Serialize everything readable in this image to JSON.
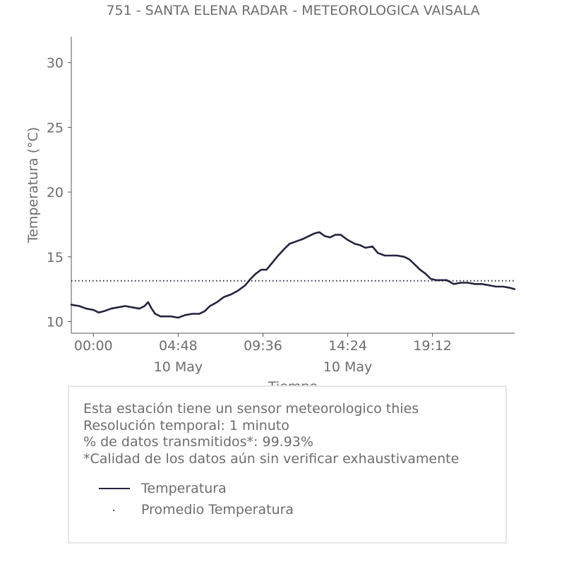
{
  "chart_data": {
    "type": "line",
    "title": "751 - SANTA ELENA RADAR - METEOROLOGICA VAISALA",
    "ylabel": "Temperatura (°C)",
    "xlabel": "Tiempo",
    "ylim": [
      9.1,
      32
    ],
    "xlim": [
      -1.25,
      23.85
    ],
    "yticks": [
      10,
      15,
      20,
      25,
      30
    ],
    "xticks": [
      {
        "hour": 0.0,
        "label": "00:00",
        "sublabel": ""
      },
      {
        "hour": 4.8,
        "label": "04:48",
        "sublabel": "10 May"
      },
      {
        "hour": 9.6,
        "label": "09:36",
        "sublabel": ""
      },
      {
        "hour": 14.4,
        "label": "14:24",
        "sublabel": "10 May"
      },
      {
        "hour": 19.2,
        "label": "19:12",
        "sublabel": ""
      }
    ],
    "series": [
      {
        "name": "Temperatura",
        "style": "solid",
        "color": "#24243f",
        "x": [
          -1.25,
          -0.8,
          -0.4,
          0.0,
          0.3,
          0.6,
          1.0,
          1.4,
          1.8,
          2.2,
          2.6,
          2.9,
          3.1,
          3.3,
          3.5,
          3.8,
          4.1,
          4.4,
          4.8,
          5.2,
          5.6,
          6.0,
          6.3,
          6.6,
          7.0,
          7.4,
          7.8,
          8.2,
          8.6,
          8.9,
          9.2,
          9.5,
          9.8,
          10.1,
          10.4,
          10.8,
          11.1,
          11.5,
          11.9,
          12.2,
          12.5,
          12.8,
          13.1,
          13.4,
          13.7,
          14.0,
          14.4,
          14.8,
          15.1,
          15.4,
          15.8,
          16.1,
          16.5,
          16.9,
          17.2,
          17.6,
          17.9,
          18.2,
          18.5,
          18.8,
          19.1,
          19.4,
          19.7,
          20.0,
          20.4,
          20.8,
          21.2,
          21.6,
          22.0,
          22.4,
          22.8,
          23.2,
          23.6,
          23.85
        ],
        "y": [
          11.3,
          11.2,
          11.0,
          10.9,
          10.7,
          10.8,
          11.0,
          11.1,
          11.2,
          11.1,
          11.0,
          11.2,
          11.5,
          11.0,
          10.6,
          10.4,
          10.4,
          10.4,
          10.3,
          10.5,
          10.6,
          10.6,
          10.8,
          11.2,
          11.5,
          11.9,
          12.1,
          12.4,
          12.8,
          13.3,
          13.7,
          14.0,
          14.0,
          14.5,
          15.0,
          15.6,
          16.0,
          16.2,
          16.4,
          16.6,
          16.8,
          16.9,
          16.6,
          16.5,
          16.7,
          16.7,
          16.3,
          16.0,
          15.9,
          15.7,
          15.8,
          15.3,
          15.1,
          15.1,
          15.1,
          15.0,
          14.8,
          14.4,
          14.0,
          13.7,
          13.3,
          13.2,
          13.2,
          13.2,
          12.9,
          13.0,
          13.0,
          12.9,
          12.9,
          12.8,
          12.7,
          12.7,
          12.6,
          12.5
        ]
      },
      {
        "name": "Promedio Temperatura",
        "style": "dotted",
        "color": "#24243f",
        "x": [
          -1.25,
          23.85
        ],
        "y": [
          13.15,
          13.15
        ]
      }
    ],
    "legend": {
      "placement": "bottom-left",
      "entries": [
        "Temperatura",
        "Promedio Temperatura"
      ]
    },
    "grid": false
  },
  "info": {
    "lines": [
      "Esta estación tiene un sensor meteorologico thies",
      "Resolución temporal: 1 minuto",
      "% de datos transmitidos*: 99.93%",
      "*Calidad de los datos aún sin verificar exhaustivamente"
    ]
  }
}
